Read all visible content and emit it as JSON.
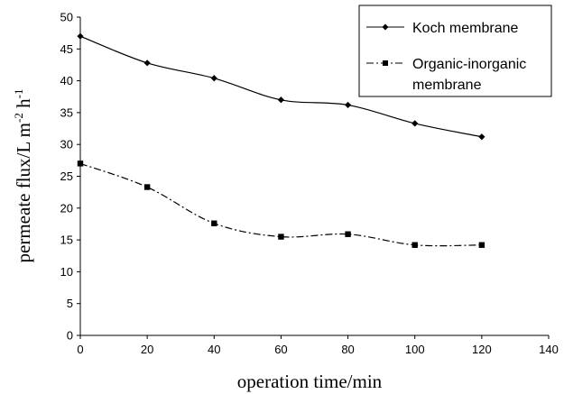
{
  "chart_data": {
    "type": "line",
    "x": [
      0,
      20,
      40,
      60,
      80,
      100,
      120
    ],
    "series": [
      {
        "name": "Koch membrane",
        "values": [
          47.0,
          42.8,
          40.4,
          37.0,
          36.2,
          33.3,
          31.2
        ],
        "marker": "diamond",
        "line_style": "solid",
        "color": "#000000"
      },
      {
        "name": "Organic-inorganic membrane",
        "name_lines": [
          "Organic-inorganic",
          "membrane"
        ],
        "values": [
          27.0,
          23.3,
          17.6,
          15.5,
          15.9,
          14.2,
          14.2
        ],
        "marker": "square",
        "line_style": "dash-dot",
        "color": "#000000"
      }
    ],
    "xlim": [
      0,
      140
    ],
    "ylim": [
      0,
      50
    ],
    "x_ticks": [
      0,
      20,
      40,
      60,
      80,
      100,
      120,
      140
    ],
    "y_ticks": [
      0,
      5,
      10,
      15,
      20,
      25,
      30,
      35,
      40,
      45,
      50
    ],
    "xlabel": "operation time/min",
    "ylabel": {
      "main": "permeate flux/L m",
      "exp1": "-2",
      "unit2": " h",
      "exp2": "-1"
    },
    "grid": false,
    "legend_position": "top-right"
  }
}
